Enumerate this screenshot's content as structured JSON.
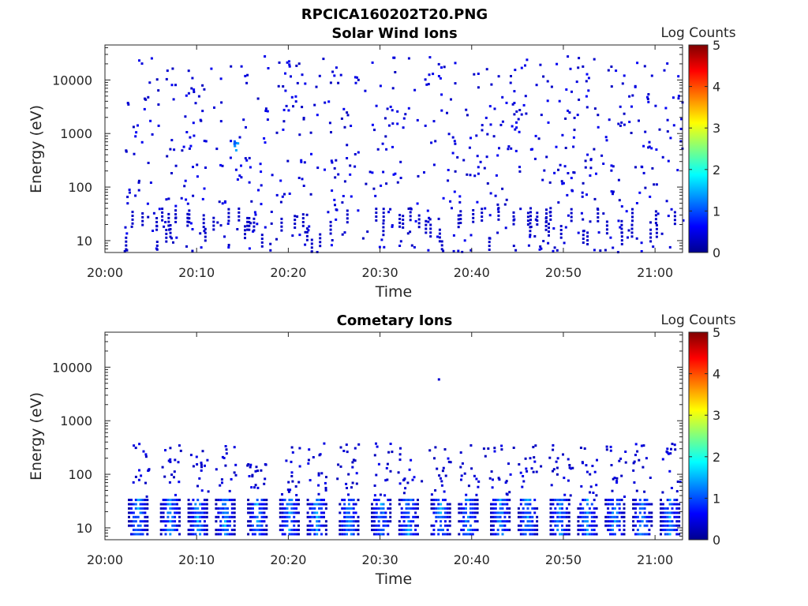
{
  "figure": {
    "suptitle": "RPCICA160202T20.PNG"
  },
  "chart_data": [
    {
      "type": "heatmap",
      "title": "Solar Wind Ions",
      "xlabel": "Time",
      "ylabel": "Energy (eV)",
      "x_ticks": [
        "20:00",
        "20:10",
        "20:20",
        "20:30",
        "20:40",
        "20:50",
        "21:00"
      ],
      "x_range_minutes": [
        0,
        63
      ],
      "y_ticks": [
        "10",
        "100",
        "1000",
        "10000"
      ],
      "y_scale": "log",
      "y_range": [
        6,
        45000
      ],
      "colorbar": {
        "label": "Log Counts",
        "ticks": [
          "0",
          "1",
          "2",
          "3",
          "4",
          "5"
        ],
        "range": [
          0,
          5
        ],
        "colormap": "jet"
      },
      "description_of_data": "Sparse scattered single-count (log 0-0.5) detections across all energies 10 eV - 30 keV; brief enhancement near 20:14 at ~600 eV.",
      "background": "#ffffff"
    },
    {
      "type": "heatmap",
      "title": "Cometary Ions",
      "xlabel": "Time",
      "ylabel": "Energy (eV)",
      "x_ticks": [
        "20:00",
        "20:10",
        "20:20",
        "20:30",
        "20:40",
        "20:50",
        "21:00"
      ],
      "x_range_minutes": [
        0,
        63
      ],
      "y_ticks": [
        "10",
        "100",
        "1000",
        "10000"
      ],
      "y_scale": "log",
      "y_range": [
        6,
        45000
      ],
      "colorbar": {
        "label": "Log Counts",
        "ticks": [
          "0",
          "1",
          "2",
          "3",
          "4",
          "5"
        ],
        "range": [
          0,
          5
        ],
        "colormap": "jet"
      },
      "burst_minutes": [
        3.5,
        7,
        10,
        13,
        16.5,
        20,
        23,
        26.5,
        30,
        33,
        36.5,
        39.5,
        43,
        46,
        49.5,
        52.5,
        55.5,
        58.5,
        61.5
      ],
      "burst_energy_range_eV": [
        8,
        40
      ],
      "burst_peak_log_counts": 1.5,
      "description_of_data": "Periodic bursts (~3 min spacing) of cometary ions at 8-40 eV with peak log counts ~1-1.5; sparse counts extending up to ~400 eV; isolated count near 20:36 at ~6 keV."
    }
  ]
}
